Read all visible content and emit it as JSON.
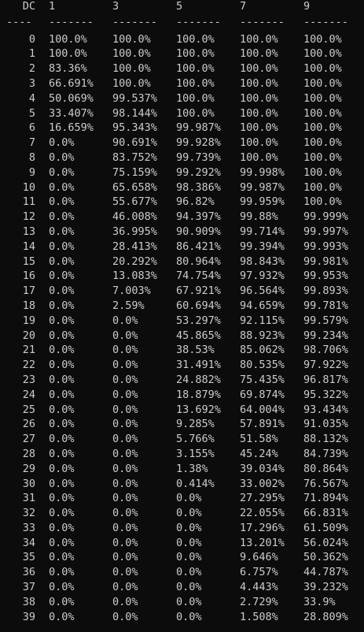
{
  "header": {
    "dc": "DC",
    "cols": [
      "1",
      "3",
      "5",
      "7",
      "9"
    ]
  },
  "separator": {
    "dc": "----",
    "cols": [
      "-------",
      "-------",
      "-------",
      "-------",
      "-------"
    ]
  },
  "rows": [
    {
      "dc": "0",
      "v": [
        "100.0%",
        "100.0%",
        "100.0%",
        "100.0%",
        "100.0%"
      ]
    },
    {
      "dc": "1",
      "v": [
        "100.0%",
        "100.0%",
        "100.0%",
        "100.0%",
        "100.0%"
      ]
    },
    {
      "dc": "2",
      "v": [
        "83.36%",
        "100.0%",
        "100.0%",
        "100.0%",
        "100.0%"
      ]
    },
    {
      "dc": "3",
      "v": [
        "66.691%",
        "100.0%",
        "100.0%",
        "100.0%",
        "100.0%"
      ]
    },
    {
      "dc": "4",
      "v": [
        "50.069%",
        "99.537%",
        "100.0%",
        "100.0%",
        "100.0%"
      ]
    },
    {
      "dc": "5",
      "v": [
        "33.407%",
        "98.144%",
        "100.0%",
        "100.0%",
        "100.0%"
      ]
    },
    {
      "dc": "6",
      "v": [
        "16.659%",
        "95.343%",
        "99.987%",
        "100.0%",
        "100.0%"
      ]
    },
    {
      "dc": "7",
      "v": [
        "0.0%",
        "90.691%",
        "99.928%",
        "100.0%",
        "100.0%"
      ]
    },
    {
      "dc": "8",
      "v": [
        "0.0%",
        "83.752%",
        "99.739%",
        "100.0%",
        "100.0%"
      ]
    },
    {
      "dc": "9",
      "v": [
        "0.0%",
        "75.159%",
        "99.292%",
        "99.998%",
        "100.0%"
      ]
    },
    {
      "dc": "10",
      "v": [
        "0.0%",
        "65.658%",
        "98.386%",
        "99.987%",
        "100.0%"
      ]
    },
    {
      "dc": "11",
      "v": [
        "0.0%",
        "55.677%",
        "96.82%",
        "99.959%",
        "100.0%"
      ]
    },
    {
      "dc": "12",
      "v": [
        "0.0%",
        "46.008%",
        "94.397%",
        "99.88%",
        "99.999%"
      ]
    },
    {
      "dc": "13",
      "v": [
        "0.0%",
        "36.995%",
        "90.909%",
        "99.714%",
        "99.997%"
      ]
    },
    {
      "dc": "14",
      "v": [
        "0.0%",
        "28.413%",
        "86.421%",
        "99.394%",
        "99.993%"
      ]
    },
    {
      "dc": "15",
      "v": [
        "0.0%",
        "20.292%",
        "80.964%",
        "98.843%",
        "99.981%"
      ]
    },
    {
      "dc": "16",
      "v": [
        "0.0%",
        "13.083%",
        "74.754%",
        "97.932%",
        "99.953%"
      ]
    },
    {
      "dc": "17",
      "v": [
        "0.0%",
        "7.003%",
        "67.921%",
        "96.564%",
        "99.893%"
      ]
    },
    {
      "dc": "18",
      "v": [
        "0.0%",
        "2.59%",
        "60.694%",
        "94.659%",
        "99.781%"
      ]
    },
    {
      "dc": "19",
      "v": [
        "0.0%",
        "0.0%",
        "53.297%",
        "92.115%",
        "99.579%"
      ]
    },
    {
      "dc": "20",
      "v": [
        "0.0%",
        "0.0%",
        "45.865%",
        "88.923%",
        "99.234%"
      ]
    },
    {
      "dc": "21",
      "v": [
        "0.0%",
        "0.0%",
        "38.53%",
        "85.062%",
        "98.706%"
      ]
    },
    {
      "dc": "22",
      "v": [
        "0.0%",
        "0.0%",
        "31.491%",
        "80.535%",
        "97.922%"
      ]
    },
    {
      "dc": "23",
      "v": [
        "0.0%",
        "0.0%",
        "24.882%",
        "75.435%",
        "96.817%"
      ]
    },
    {
      "dc": "24",
      "v": [
        "0.0%",
        "0.0%",
        "18.879%",
        "69.874%",
        "95.322%"
      ]
    },
    {
      "dc": "25",
      "v": [
        "0.0%",
        "0.0%",
        "13.692%",
        "64.004%",
        "93.434%"
      ]
    },
    {
      "dc": "26",
      "v": [
        "0.0%",
        "0.0%",
        "9.285%",
        "57.891%",
        "91.035%"
      ]
    },
    {
      "dc": "27",
      "v": [
        "0.0%",
        "0.0%",
        "5.766%",
        "51.58%",
        "88.132%"
      ]
    },
    {
      "dc": "28",
      "v": [
        "0.0%",
        "0.0%",
        "3.155%",
        "45.24%",
        "84.739%"
      ]
    },
    {
      "dc": "29",
      "v": [
        "0.0%",
        "0.0%",
        "1.38%",
        "39.034%",
        "80.864%"
      ]
    },
    {
      "dc": "30",
      "v": [
        "0.0%",
        "0.0%",
        "0.414%",
        "33.002%",
        "76.567%"
      ]
    },
    {
      "dc": "31",
      "v": [
        "0.0%",
        "0.0%",
        "0.0%",
        "27.295%",
        "71.894%"
      ]
    },
    {
      "dc": "32",
      "v": [
        "0.0%",
        "0.0%",
        "0.0%",
        "22.055%",
        "66.831%"
      ]
    },
    {
      "dc": "33",
      "v": [
        "0.0%",
        "0.0%",
        "0.0%",
        "17.296%",
        "61.509%"
      ]
    },
    {
      "dc": "34",
      "v": [
        "0.0%",
        "0.0%",
        "0.0%",
        "13.201%",
        "56.024%"
      ]
    },
    {
      "dc": "35",
      "v": [
        "0.0%",
        "0.0%",
        "0.0%",
        "9.646%",
        "50.362%"
      ]
    },
    {
      "dc": "36",
      "v": [
        "0.0%",
        "0.0%",
        "0.0%",
        "6.757%",
        "44.787%"
      ]
    },
    {
      "dc": "37",
      "v": [
        "0.0%",
        "0.0%",
        "0.0%",
        "4.443%",
        "39.232%"
      ]
    },
    {
      "dc": "38",
      "v": [
        "0.0%",
        "0.0%",
        "0.0%",
        "2.729%",
        "33.9%"
      ]
    },
    {
      "dc": "39",
      "v": [
        "0.0%",
        "0.0%",
        "0.0%",
        "1.508%",
        "28.809%"
      ]
    }
  ]
}
